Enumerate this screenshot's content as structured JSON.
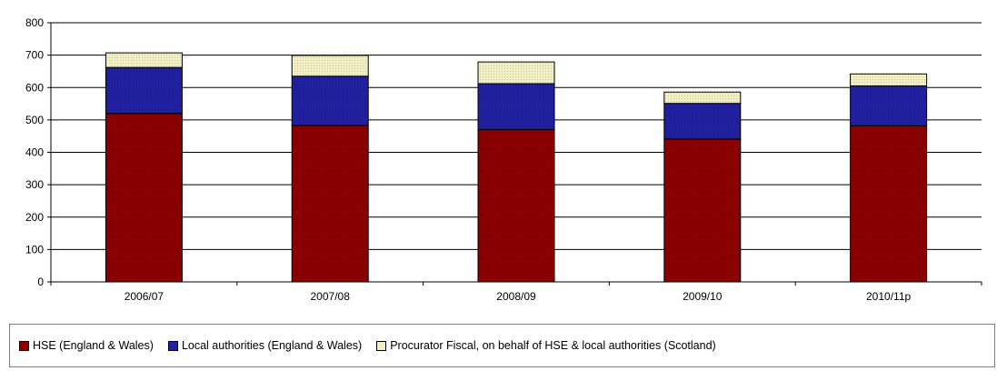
{
  "chart_data": {
    "type": "bar",
    "stacked": true,
    "title": "",
    "xlabel": "",
    "ylabel": "",
    "ylim": [
      0,
      800
    ],
    "yticks": [
      0,
      100,
      200,
      300,
      400,
      500,
      600,
      700,
      800
    ],
    "grid": true,
    "legend_position": "bottom",
    "categories": [
      "2006/07",
      "2007/08",
      "2008/09",
      "2009/10",
      "2010/11p"
    ],
    "series": [
      {
        "name": "HSE (England & Wales)",
        "color": "#8b0000",
        "values": [
          520,
          483,
          470,
          441,
          482
        ]
      },
      {
        "name": "Local authorities (England & Wales)",
        "color": "#2020a0",
        "values": [
          142,
          152,
          142,
          110,
          123
        ]
      },
      {
        "name": "Procurator Fiscal, on behalf of HSE & local authorities (Scotland)",
        "color": "#f3efc4",
        "values": [
          45,
          64,
          67,
          35,
          37
        ]
      }
    ]
  }
}
